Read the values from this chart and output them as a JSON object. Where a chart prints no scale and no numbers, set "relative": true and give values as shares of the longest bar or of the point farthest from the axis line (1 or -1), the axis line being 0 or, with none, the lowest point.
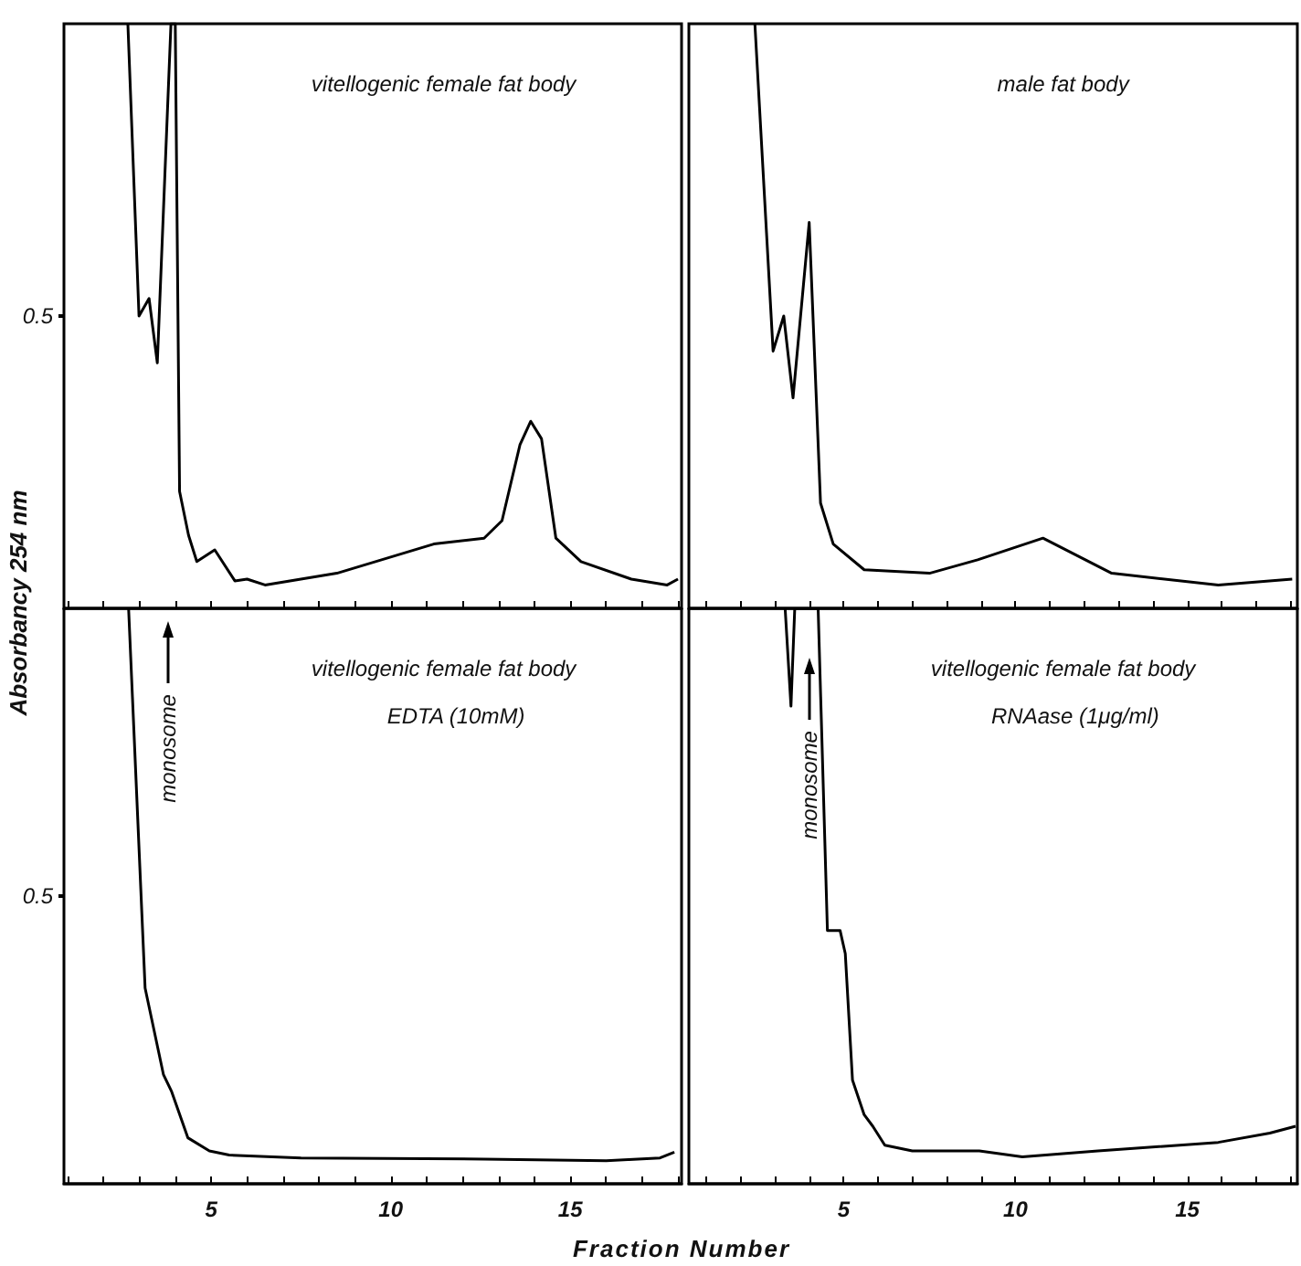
{
  "chart_data": [
    {
      "type": "line",
      "relative": true,
      "title": "vitellogenic female fat body",
      "ylabel": "Absorbancy 254 nm",
      "xlim": [
        0.9,
        18.1
      ],
      "xticks": [
        {
          "value": 1,
          "label": null
        },
        {
          "value": 2,
          "label": null
        },
        {
          "value": 3,
          "label": null
        },
        {
          "value": 4,
          "label": null
        },
        {
          "value": 5,
          "label": null
        },
        {
          "value": 6,
          "label": null
        },
        {
          "value": 7,
          "label": null
        },
        {
          "value": 8,
          "label": null
        },
        {
          "value": 9,
          "label": null
        },
        {
          "value": 10,
          "label": null
        },
        {
          "value": 11,
          "label": null
        },
        {
          "value": 12,
          "label": null
        },
        {
          "value": 13,
          "label": null
        },
        {
          "value": 14,
          "label": null
        },
        {
          "value": 15,
          "label": null
        },
        {
          "value": 16,
          "label": null
        },
        {
          "value": 17,
          "label": null
        },
        {
          "value": 18,
          "label": null
        }
      ],
      "tick_labels": false,
      "annotations": [
        "0.5"
      ],
      "series": [
        {
          "color": "#000000",
          "x": [
            2.68,
            2.99,
            3.27,
            3.5,
            3.88,
            4.0,
            4.12,
            4.37,
            4.6,
            5.1,
            5.66,
            6.0,
            6.5,
            7.5,
            8.5,
            9.85,
            11.2,
            12.6,
            13.1,
            13.6,
            13.9,
            14.2,
            14.6,
            15.3,
            16.7,
            17.7,
            18.0
          ],
          "values": [
            1.0,
            0.5,
            0.53,
            0.42,
            1.0,
            1.0,
            0.2,
            0.125,
            0.08,
            0.1,
            0.047,
            0.05,
            0.04,
            0.05,
            0.06,
            0.085,
            0.11,
            0.12,
            0.15,
            0.28,
            0.32,
            0.29,
            0.12,
            0.08,
            0.05,
            0.04,
            0.05
          ]
        }
      ]
    },
    {
      "type": "line",
      "relative": true,
      "title": "male fat body",
      "xlim": [
        0.5,
        18.2
      ],
      "xticks": [
        {
          "value": 1,
          "label": null
        },
        {
          "value": 2,
          "label": null
        },
        {
          "value": 3,
          "label": null
        },
        {
          "value": 4,
          "label": null
        },
        {
          "value": 5,
          "label": null
        },
        {
          "value": 6,
          "label": null
        },
        {
          "value": 7,
          "label": null
        },
        {
          "value": 8,
          "label": null
        },
        {
          "value": 9,
          "label": null
        },
        {
          "value": 10,
          "label": null
        },
        {
          "value": 11,
          "label": null
        },
        {
          "value": 12,
          "label": null
        },
        {
          "value": 13,
          "label": null
        },
        {
          "value": 14,
          "label": null
        },
        {
          "value": 15,
          "label": null
        },
        {
          "value": 16,
          "label": null
        },
        {
          "value": 17,
          "label": null
        },
        {
          "value": 18,
          "label": null
        }
      ],
      "tick_labels": false,
      "series": [
        {
          "color": "#000000",
          "x": [
            2.42,
            2.95,
            3.26,
            3.53,
            4.0,
            4.33,
            4.7,
            5.6,
            7.5,
            8.9,
            10.8,
            12.8,
            15.9,
            18.05
          ],
          "values": [
            1.0,
            0.44,
            0.5,
            0.36,
            0.66,
            0.18,
            0.11,
            0.066,
            0.06,
            0.083,
            0.12,
            0.06,
            0.04,
            0.05
          ]
        }
      ]
    },
    {
      "type": "line",
      "relative": true,
      "title": "vitellogenic female fat body",
      "subtitle": "EDTA (10mM)",
      "xlabel": "Fraction Number",
      "xlim": [
        0.9,
        18.1
      ],
      "xticks": [
        {
          "value": 1,
          "label": null
        },
        {
          "value": 2,
          "label": null
        },
        {
          "value": 3,
          "label": null
        },
        {
          "value": 4,
          "label": null
        },
        5,
        {
          "value": 6,
          "label": null
        },
        {
          "value": 7,
          "label": null
        },
        {
          "value": 8,
          "label": null
        },
        {
          "value": 9,
          "label": null
        },
        10,
        {
          "value": 11,
          "label": null
        },
        {
          "value": 12,
          "label": null
        },
        {
          "value": 13,
          "label": null
        },
        {
          "value": 14,
          "label": null
        },
        15,
        {
          "value": 16,
          "label": null
        },
        {
          "value": 17,
          "label": null
        },
        {
          "value": 18,
          "label": null
        }
      ],
      "tick_labels": "x",
      "annotations": [
        "0.5",
        "monosome"
      ],
      "series": [
        {
          "color": "#000000",
          "x": [
            2.7,
            3.16,
            3.67,
            3.9,
            4.35,
            4.95,
            5.5,
            7.5,
            12.6,
            16.0,
            17.5,
            17.9
          ],
          "values": [
            1.0,
            0.34,
            0.19,
            0.16,
            0.08,
            0.057,
            0.05,
            0.045,
            0.043,
            0.04,
            0.045,
            0.055
          ]
        }
      ]
    },
    {
      "type": "line",
      "relative": true,
      "title": "vitellogenic female fat body",
      "subtitle": "RNAase (1μg/ml)",
      "xlim": [
        0.5,
        18.2
      ],
      "xticks": [
        {
          "value": 1,
          "label": null
        },
        {
          "value": 2,
          "label": null
        },
        {
          "value": 3,
          "label": null
        },
        {
          "value": 4,
          "label": null
        },
        5,
        {
          "value": 6,
          "label": null
        },
        {
          "value": 7,
          "label": null
        },
        {
          "value": 8,
          "label": null
        },
        {
          "value": 9,
          "label": null
        },
        10,
        {
          "value": 11,
          "label": null
        },
        {
          "value": 12,
          "label": null
        },
        {
          "value": 13,
          "label": null
        },
        {
          "value": 14,
          "label": null
        },
        15,
        {
          "value": 16,
          "label": null
        },
        {
          "value": 17,
          "label": null
        },
        {
          "value": 18,
          "label": null
        }
      ],
      "tick_labels": "x",
      "annotations": [
        "monosome"
      ],
      "series": [
        {
          "color": "#000000",
          "x": [
            3.3,
            3.47,
            3.58,
            4.26,
            4.53,
            4.9,
            5.05,
            5.26,
            5.6,
            5.85,
            6.2,
            7.0,
            8.95,
            10.2,
            12.4,
            15.9,
            17.4,
            18.15
          ],
          "values": [
            1.0,
            0.83,
            1.0,
            1.0,
            0.44,
            0.44,
            0.4,
            0.18,
            0.12,
            0.1,
            0.067,
            0.057,
            0.057,
            0.047,
            0.057,
            0.072,
            0.088,
            0.1
          ]
        }
      ]
    }
  ]
}
